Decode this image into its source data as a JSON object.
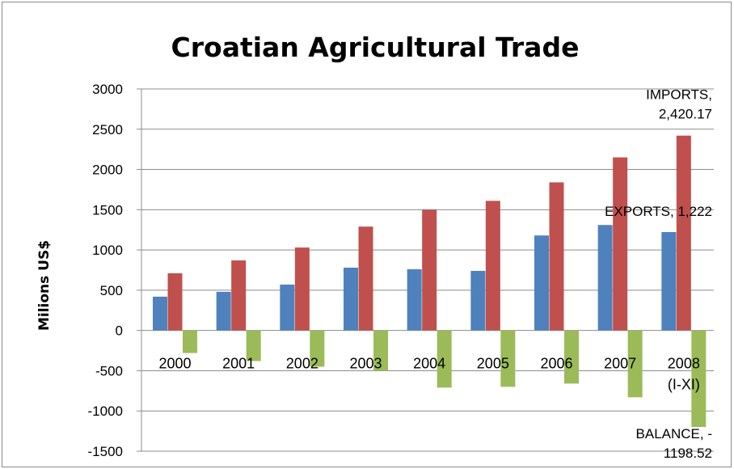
{
  "chart_data": {
    "type": "bar",
    "title": "Croatian  Agricultural Trade",
    "ylabel": "Milions US$",
    "xlabel": "",
    "ylim": [
      -1500,
      3000
    ],
    "yticks": [
      3000,
      2500,
      2000,
      1500,
      1000,
      500,
      0,
      -500,
      -1000,
      -1500
    ],
    "grid": true,
    "categories": [
      "2000",
      "2001",
      "2002",
      "2003",
      "2004",
      "2005",
      "2006",
      "2007",
      "2008\n(I-XI)"
    ],
    "series": [
      {
        "name": "EXPORTS",
        "color": "#4f81bd",
        "values": [
          420,
          480,
          570,
          780,
          760,
          740,
          1180,
          1310,
          1222
        ]
      },
      {
        "name": "IMPORTS",
        "color": "#c0504d",
        "values": [
          710,
          870,
          1030,
          1290,
          1500,
          1610,
          1840,
          2150,
          2420.17
        ]
      },
      {
        "name": "BALANCE",
        "color": "#9bbb59",
        "values": [
          -280,
          -380,
          -450,
          -500,
          -710,
          -700,
          -660,
          -830,
          -1198.52
        ]
      }
    ],
    "annotations": [
      {
        "series": "IMPORTS",
        "category_index": 8,
        "lines": [
          "IMPORTS,",
          "2,420.17"
        ]
      },
      {
        "series": "EXPORTS",
        "category_index": 8,
        "lines": [
          "EXPORTS, 1,222"
        ]
      },
      {
        "series": "BALANCE",
        "category_index": 8,
        "lines": [
          "BALANCE, -",
          "1198.52"
        ]
      }
    ]
  }
}
